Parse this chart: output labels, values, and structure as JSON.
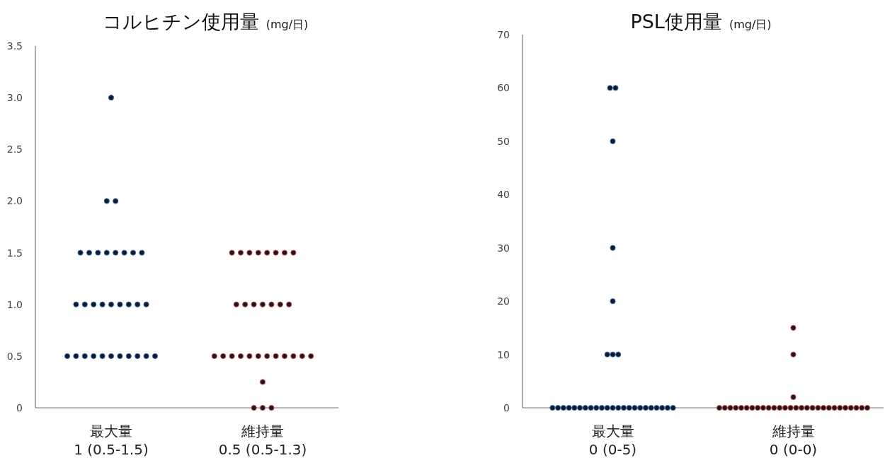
{
  "chart_data": [
    {
      "type": "scatter",
      "title": "コルヒチン使用量",
      "subtitle": "(mg/日)",
      "categories": [
        "最大量\n1 (0.5-1.5)",
        "維持量\n0.5 (0.5-1.3)"
      ],
      "ylim": [
        0,
        3.5
      ],
      "yticks": [
        0,
        {
          "value": 0.5,
          "label": "0.5"
        },
        {
          "value": 1,
          "label": "1.0"
        },
        {
          "value": 1.5,
          "label": "1.5"
        },
        {
          "value": 2,
          "label": "2.0"
        },
        {
          "value": 2.5,
          "label": "2.5"
        },
        {
          "value": 3,
          "label": "3.0"
        },
        {
          "value": 3.5,
          "label": "3.5"
        }
      ],
      "grid": false,
      "marker": "circle",
      "series": [
        {
          "color": "#2e75b6",
          "x": [
            "最大量\n1 (0.5-1.5)",
            "最大量\n1 (0.5-1.5)",
            "最大量\n1 (0.5-1.5)",
            "最大量\n1 (0.5-1.5)",
            "最大量\n1 (0.5-1.5)",
            "最大量\n1 (0.5-1.5)",
            "最大量\n1 (0.5-1.5)",
            "最大量\n1 (0.5-1.5)",
            "最大量\n1 (0.5-1.5)",
            "最大量\n1 (0.5-1.5)",
            "最大量\n1 (0.5-1.5)",
            "最大量\n1 (0.5-1.5)",
            "最大量\n1 (0.5-1.5)",
            "最大量\n1 (0.5-1.5)",
            "最大量\n1 (0.5-1.5)",
            "最大量\n1 (0.5-1.5)",
            "最大量\n1 (0.5-1.5)",
            "最大量\n1 (0.5-1.5)",
            "最大量\n1 (0.5-1.5)",
            "最大量\n1 (0.5-1.5)",
            "最大量\n1 (0.5-1.5)",
            "最大量\n1 (0.5-1.5)",
            "最大量\n1 (0.5-1.5)",
            "最大量\n1 (0.5-1.5)",
            "最大量\n1 (0.5-1.5)",
            "最大量\n1 (0.5-1.5)",
            "最大量\n1 (0.5-1.5)",
            "最大量\n1 (0.5-1.5)",
            "最大量\n1 (0.5-1.5)",
            "最大量\n1 (0.5-1.5)",
            "最大量\n1 (0.5-1.5)"
          ],
          "values": [
            3,
            2,
            2,
            1.5,
            1.5,
            1.5,
            1.5,
            1.5,
            1.5,
            1.5,
            1.5,
            1,
            1,
            1,
            1,
            1,
            1,
            1,
            1,
            1,
            0.5,
            0.5,
            0.5,
            0.5,
            0.5,
            0.5,
            0.5,
            0.5,
            0.5,
            0.5,
            0.5
          ]
        },
        {
          "color": "#e04a3a",
          "x": [
            "維持量\n0.5 (0.5-1.3)",
            "維持量\n0.5 (0.5-1.3)",
            "維持量\n0.5 (0.5-1.3)",
            "維持量\n0.5 (0.5-1.3)",
            "維持量\n0.5 (0.5-1.3)",
            "維持量\n0.5 (0.5-1.3)",
            "維持量\n0.5 (0.5-1.3)",
            "維持量\n0.5 (0.5-1.3)",
            "維持量\n0.5 (0.5-1.3)",
            "維持量\n0.5 (0.5-1.3)",
            "維持量\n0.5 (0.5-1.3)",
            "維持量\n0.5 (0.5-1.3)",
            "維持量\n0.5 (0.5-1.3)",
            "維持量\n0.5 (0.5-1.3)",
            "維持量\n0.5 (0.5-1.3)",
            "維持量\n0.5 (0.5-1.3)",
            "維持量\n0.5 (0.5-1.3)",
            "維持量\n0.5 (0.5-1.3)",
            "維持量\n0.5 (0.5-1.3)",
            "維持量\n0.5 (0.5-1.3)",
            "維持量\n0.5 (0.5-1.3)",
            "維持量\n0.5 (0.5-1.3)",
            "維持量\n0.5 (0.5-1.3)",
            "維持量\n0.5 (0.5-1.3)",
            "維持量\n0.5 (0.5-1.3)",
            "維持量\n0.5 (0.5-1.3)",
            "維持量\n0.5 (0.5-1.3)",
            "維持量\n0.5 (0.5-1.3)",
            "維持量\n0.5 (0.5-1.3)",
            "維持量\n0.5 (0.5-1.3)",
            "維持量\n0.5 (0.5-1.3)"
          ],
          "values": [
            1.5,
            1.5,
            1.5,
            1.5,
            1.5,
            1.5,
            1.5,
            1.5,
            1,
            1,
            1,
            1,
            1,
            1,
            1,
            0.5,
            0.5,
            0.5,
            0.5,
            0.5,
            0.5,
            0.5,
            0.5,
            0.5,
            0.5,
            0.5,
            0.5,
            0.25,
            0,
            0,
            0
          ]
        }
      ]
    },
    {
      "type": "scatter",
      "title": "PSL使用量",
      "subtitle": "(mg/日)",
      "categories": [
        "最大量\n0 (0-5)",
        "維持量\n0 (0-0)"
      ],
      "ylim": [
        0,
        70
      ],
      "yticks": [
        0,
        10,
        20,
        30,
        40,
        50,
        60,
        70
      ],
      "grid": false,
      "marker": "circle",
      "series": [
        {
          "color": "#2e75b6",
          "x": [
            "最大量\n0 (0-5)",
            "最大量\n0 (0-5)",
            "最大量\n0 (0-5)",
            "最大量\n0 (0-5)",
            "最大量\n0 (0-5)",
            "最大量\n0 (0-5)",
            "最大量\n0 (0-5)",
            "最大量\n0 (0-5)",
            "最大量\n0 (0-5)",
            "最大量\n0 (0-5)",
            "最大量\n0 (0-5)",
            "最大量\n0 (0-5)",
            "最大量\n0 (0-5)",
            "最大量\n0 (0-5)",
            "最大量\n0 (0-5)",
            "最大量\n0 (0-5)",
            "最大量\n0 (0-5)",
            "最大量\n0 (0-5)",
            "最大量\n0 (0-5)",
            "最大量\n0 (0-5)",
            "最大量\n0 (0-5)",
            "最大量\n0 (0-5)",
            "最大量\n0 (0-5)",
            "最大量\n0 (0-5)",
            "最大量\n0 (0-5)",
            "最大量\n0 (0-5)",
            "最大量\n0 (0-5)",
            "最大量\n0 (0-5)",
            "最大量\n0 (0-5)",
            "最大量\n0 (0-5)",
            "最大量\n0 (0-5)"
          ],
          "values": [
            60,
            60,
            50,
            30,
            20,
            10,
            10,
            10,
            0,
            0,
            0,
            0,
            0,
            0,
            0,
            0,
            0,
            0,
            0,
            0,
            0,
            0,
            0,
            0,
            0,
            0,
            0,
            0,
            0,
            0,
            0
          ]
        },
        {
          "color": "#e04a3a",
          "x": [
            "維持量\n0 (0-0)",
            "維持量\n0 (0-0)",
            "維持量\n0 (0-0)",
            "維持量\n0 (0-0)",
            "維持量\n0 (0-0)",
            "維持量\n0 (0-0)",
            "維持量\n0 (0-0)",
            "維持量\n0 (0-0)",
            "維持量\n0 (0-0)",
            "維持量\n0 (0-0)",
            "維持量\n0 (0-0)",
            "維持量\n0 (0-0)",
            "維持量\n0 (0-0)",
            "維持量\n0 (0-0)",
            "維持量\n0 (0-0)",
            "維持量\n0 (0-0)",
            "維持量\n0 (0-0)",
            "維持量\n0 (0-0)",
            "維持量\n0 (0-0)",
            "維持量\n0 (0-0)",
            "維持量\n0 (0-0)",
            "維持量\n0 (0-0)",
            "維持量\n0 (0-0)",
            "維持量\n0 (0-0)",
            "維持量\n0 (0-0)",
            "維持量\n0 (0-0)",
            "維持量\n0 (0-0)",
            "維持量\n0 (0-0)",
            "維持量\n0 (0-0)",
            "維持量\n0 (0-0)",
            "維持量\n0 (0-0)"
          ],
          "values": [
            15,
            10,
            2,
            0,
            0,
            0,
            0,
            0,
            0,
            0,
            0,
            0,
            0,
            0,
            0,
            0,
            0,
            0,
            0,
            0,
            0,
            0,
            0,
            0,
            0,
            0,
            0,
            0,
            0,
            0,
            0
          ]
        }
      ]
    }
  ]
}
